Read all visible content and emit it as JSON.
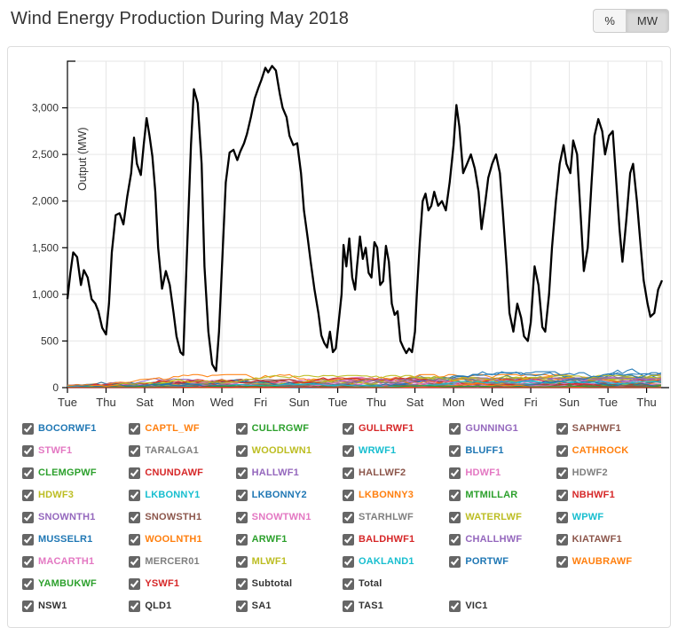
{
  "header": {
    "title": "Wind Energy Production During May 2018",
    "unit_buttons": [
      {
        "label": "%",
        "active": false
      },
      {
        "label": "MW",
        "active": true
      }
    ]
  },
  "chart_data": {
    "type": "line",
    "title": "Wind Energy Production During May 2018",
    "xlabel": "",
    "ylabel": "Output (MW)",
    "ylim": [
      0,
      3500
    ],
    "grid": true,
    "grid_color": "#e6e6e6",
    "y_ticks": [
      0,
      500,
      1000,
      1500,
      2000,
      2500,
      3000
    ],
    "y_tick_labels": [
      "0",
      "500",
      "1,000",
      "1,500",
      "2,000",
      "2,500",
      "3,000"
    ],
    "x_tick_labels": [
      "Tue",
      "Thu",
      "Sat",
      "Mon",
      "Wed",
      "Fri",
      "Sun",
      "Tue",
      "Thu",
      "Sat",
      "Mon",
      "Wed",
      "Fri",
      "Sun",
      "Tue",
      "Thu"
    ],
    "x_tick_days": [
      0,
      2,
      4,
      6,
      8,
      10,
      12,
      14,
      16,
      18,
      20,
      22,
      24,
      26,
      28,
      30
    ],
    "x_range_days": [
      0,
      30.8
    ],
    "total_series": {
      "name": "Total",
      "color": "#000000",
      "points_day_mw": [
        [
          0.0,
          950
        ],
        [
          0.15,
          1230
        ],
        [
          0.3,
          1450
        ],
        [
          0.5,
          1400
        ],
        [
          0.7,
          1100
        ],
        [
          0.85,
          1260
        ],
        [
          1.05,
          1180
        ],
        [
          1.25,
          950
        ],
        [
          1.45,
          900
        ],
        [
          1.6,
          820
        ],
        [
          1.8,
          640
        ],
        [
          2.0,
          570
        ],
        [
          2.15,
          900
        ],
        [
          2.3,
          1450
        ],
        [
          2.5,
          1850
        ],
        [
          2.7,
          1870
        ],
        [
          2.9,
          1750
        ],
        [
          3.1,
          2050
        ],
        [
          3.3,
          2300
        ],
        [
          3.45,
          2680
        ],
        [
          3.6,
          2400
        ],
        [
          3.8,
          2280
        ],
        [
          3.95,
          2600
        ],
        [
          4.1,
          2890
        ],
        [
          4.25,
          2700
        ],
        [
          4.4,
          2480
        ],
        [
          4.55,
          2100
        ],
        [
          4.7,
          1500
        ],
        [
          4.9,
          1060
        ],
        [
          5.1,
          1250
        ],
        [
          5.3,
          1100
        ],
        [
          5.5,
          800
        ],
        [
          5.65,
          550
        ],
        [
          5.85,
          380
        ],
        [
          6.0,
          350
        ],
        [
          6.2,
          1500
        ],
        [
          6.4,
          2600
        ],
        [
          6.55,
          3200
        ],
        [
          6.75,
          3050
        ],
        [
          6.95,
          2400
        ],
        [
          7.1,
          1300
        ],
        [
          7.3,
          600
        ],
        [
          7.5,
          250
        ],
        [
          7.7,
          180
        ],
        [
          7.85,
          600
        ],
        [
          8.05,
          1500
        ],
        [
          8.2,
          2200
        ],
        [
          8.4,
          2520
        ],
        [
          8.6,
          2550
        ],
        [
          8.8,
          2440
        ],
        [
          8.95,
          2530
        ],
        [
          9.15,
          2620
        ],
        [
          9.3,
          2720
        ],
        [
          9.5,
          2900
        ],
        [
          9.7,
          3100
        ],
        [
          9.9,
          3220
        ],
        [
          10.05,
          3300
        ],
        [
          10.25,
          3430
        ],
        [
          10.4,
          3380
        ],
        [
          10.6,
          3450
        ],
        [
          10.8,
          3400
        ],
        [
          11.0,
          3150
        ],
        [
          11.15,
          3000
        ],
        [
          11.35,
          2900
        ],
        [
          11.5,
          2700
        ],
        [
          11.7,
          2600
        ],
        [
          11.9,
          2620
        ],
        [
          12.1,
          2300
        ],
        [
          12.25,
          1900
        ],
        [
          12.45,
          1600
        ],
        [
          12.6,
          1350
        ],
        [
          12.8,
          1050
        ],
        [
          13.0,
          800
        ],
        [
          13.15,
          560
        ],
        [
          13.3,
          480
        ],
        [
          13.45,
          430
        ],
        [
          13.6,
          600
        ],
        [
          13.75,
          380
        ],
        [
          13.9,
          420
        ],
        [
          14.05,
          700
        ],
        [
          14.2,
          1000
        ],
        [
          14.3,
          1530
        ],
        [
          14.45,
          1300
        ],
        [
          14.6,
          1600
        ],
        [
          14.75,
          1180
        ],
        [
          14.9,
          1050
        ],
        [
          15.0,
          1300
        ],
        [
          15.15,
          1620
        ],
        [
          15.3,
          1380
        ],
        [
          15.45,
          1500
        ],
        [
          15.6,
          1230
        ],
        [
          15.75,
          1180
        ],
        [
          15.9,
          1560
        ],
        [
          16.05,
          1500
        ],
        [
          16.2,
          1100
        ],
        [
          16.35,
          1140
        ],
        [
          16.5,
          1520
        ],
        [
          16.65,
          1350
        ],
        [
          16.8,
          900
        ],
        [
          16.95,
          780
        ],
        [
          17.1,
          820
        ],
        [
          17.25,
          500
        ],
        [
          17.4,
          430
        ],
        [
          17.55,
          370
        ],
        [
          17.7,
          420
        ],
        [
          17.85,
          380
        ],
        [
          18.0,
          600
        ],
        [
          18.1,
          1000
        ],
        [
          18.25,
          1550
        ],
        [
          18.4,
          2000
        ],
        [
          18.55,
          2080
        ],
        [
          18.7,
          1900
        ],
        [
          18.85,
          1950
        ],
        [
          19.0,
          2100
        ],
        [
          19.2,
          1950
        ],
        [
          19.4,
          2000
        ],
        [
          19.6,
          1900
        ],
        [
          19.8,
          2200
        ],
        [
          20.0,
          2600
        ],
        [
          20.15,
          3030
        ],
        [
          20.3,
          2800
        ],
        [
          20.5,
          2300
        ],
        [
          20.7,
          2400
        ],
        [
          20.9,
          2500
        ],
        [
          21.1,
          2350
        ],
        [
          21.3,
          2100
        ],
        [
          21.45,
          1700
        ],
        [
          21.65,
          2000
        ],
        [
          21.8,
          2250
        ],
        [
          22.0,
          2400
        ],
        [
          22.2,
          2500
        ],
        [
          22.4,
          2300
        ],
        [
          22.55,
          1900
        ],
        [
          22.75,
          1300
        ],
        [
          22.9,
          800
        ],
        [
          23.1,
          600
        ],
        [
          23.3,
          900
        ],
        [
          23.5,
          750
        ],
        [
          23.65,
          550
        ],
        [
          23.85,
          500
        ],
        [
          24.0,
          700
        ],
        [
          24.2,
          1300
        ],
        [
          24.4,
          1100
        ],
        [
          24.6,
          650
        ],
        [
          24.75,
          600
        ],
        [
          24.95,
          1000
        ],
        [
          25.1,
          1500
        ],
        [
          25.3,
          2000
        ],
        [
          25.5,
          2400
        ],
        [
          25.7,
          2600
        ],
        [
          25.85,
          2400
        ],
        [
          26.05,
          2300
        ],
        [
          26.2,
          2650
        ],
        [
          26.4,
          2500
        ],
        [
          26.6,
          1800
        ],
        [
          26.75,
          1250
        ],
        [
          26.95,
          1500
        ],
        [
          27.15,
          2200
        ],
        [
          27.3,
          2700
        ],
        [
          27.5,
          2880
        ],
        [
          27.7,
          2750
        ],
        [
          27.85,
          2500
        ],
        [
          28.05,
          2700
        ],
        [
          28.25,
          2750
        ],
        [
          28.4,
          2300
        ],
        [
          28.6,
          1700
        ],
        [
          28.75,
          1350
        ],
        [
          28.95,
          1800
        ],
        [
          29.15,
          2300
        ],
        [
          29.3,
          2400
        ],
        [
          29.5,
          2000
        ],
        [
          29.7,
          1500
        ],
        [
          29.85,
          1150
        ],
        [
          30.05,
          900
        ],
        [
          30.2,
          760
        ],
        [
          30.4,
          800
        ],
        [
          30.6,
          1050
        ],
        [
          30.8,
          1150
        ]
      ]
    },
    "farms": [
      {
        "name": "BOCORWF1",
        "approx_peak_mw": 200
      },
      {
        "name": "CAPTL_WF",
        "approx_peak_mw": 140
      },
      {
        "name": "CULLRGWF",
        "approx_peak_mw": 30
      },
      {
        "name": "GULLRWF1",
        "approx_peak_mw": 165
      },
      {
        "name": "GUNNING1",
        "approx_peak_mw": 45
      },
      {
        "name": "SAPHWF1",
        "approx_peak_mw": 90
      },
      {
        "name": "STWF1",
        "approx_peak_mw": 110
      },
      {
        "name": "TARALGA1",
        "approx_peak_mw": 100
      },
      {
        "name": "WOODLWN1",
        "approx_peak_mw": 48
      },
      {
        "name": "WRWF1",
        "approx_peak_mw": 80
      },
      {
        "name": "BLUFF1",
        "approx_peak_mw": 50
      },
      {
        "name": "CATHROCK",
        "approx_peak_mw": 60
      },
      {
        "name": "CLEMGPWF",
        "approx_peak_mw": 55
      },
      {
        "name": "CNUNDAWF",
        "approx_peak_mw": 46
      },
      {
        "name": "HALLWF1",
        "approx_peak_mw": 95
      },
      {
        "name": "HALLWF2",
        "approx_peak_mw": 70
      },
      {
        "name": "HDWF1",
        "approx_peak_mw": 100
      },
      {
        "name": "HDWF2",
        "approx_peak_mw": 100
      },
      {
        "name": "HDWF3",
        "approx_peak_mw": 110
      },
      {
        "name": "LKBONNY1",
        "approx_peak_mw": 80
      },
      {
        "name": "LKBONNY2",
        "approx_peak_mw": 160
      },
      {
        "name": "LKBONNY3",
        "approx_peak_mw": 40
      },
      {
        "name": "MTMILLAR",
        "approx_peak_mw": 70
      },
      {
        "name": "NBHWF1",
        "approx_peak_mw": 130
      },
      {
        "name": "SNOWNTH1",
        "approx_peak_mw": 100
      },
      {
        "name": "SNOWSTH1",
        "approx_peak_mw": 90
      },
      {
        "name": "SNOWTWN1",
        "approx_peak_mw": 120
      },
      {
        "name": "STARHLWF",
        "approx_peak_mw": 35
      },
      {
        "name": "WATERLWF",
        "approx_peak_mw": 110
      },
      {
        "name": "WPWF",
        "approx_peak_mw": 90
      },
      {
        "name": "MUSSELR1",
        "approx_peak_mw": 170
      },
      {
        "name": "WOOLNTH1",
        "approx_peak_mw": 140
      },
      {
        "name": "ARWF1",
        "approx_peak_mw": 120
      },
      {
        "name": "BALDHWF1",
        "approx_peak_mw": 105
      },
      {
        "name": "CHALLHWF",
        "approx_peak_mw": 105
      },
      {
        "name": "KIATAWF1",
        "approx_peak_mw": 30
      },
      {
        "name": "MACARTH1",
        "approx_peak_mw": 430
      },
      {
        "name": "MERCER01",
        "approx_peak_mw": 130
      },
      {
        "name": "MLWF1",
        "approx_peak_mw": 130
      },
      {
        "name": "OAKLAND1",
        "approx_peak_mw": 65
      },
      {
        "name": "PORTWF",
        "approx_peak_mw": 160
      },
      {
        "name": "WAUBRAWF",
        "approx_peak_mw": 125
      },
      {
        "name": "YAMBUKWF",
        "approx_peak_mw": 30
      },
      {
        "name": "YSWF1",
        "approx_peak_mw": 30
      }
    ]
  },
  "legend": {
    "columns": 6,
    "items": [
      {
        "label": "BOCORWF1",
        "color": "#1f77b4",
        "checked": true
      },
      {
        "label": "CAPTL_WF",
        "color": "#ff7f0e",
        "checked": true
      },
      {
        "label": "CULLRGWF",
        "color": "#2ca02c",
        "checked": true
      },
      {
        "label": "GULLRWF1",
        "color": "#d62728",
        "checked": true
      },
      {
        "label": "GUNNING1",
        "color": "#9467bd",
        "checked": true
      },
      {
        "label": "SAPHWF1",
        "color": "#8c564b",
        "checked": true
      },
      {
        "label": "STWF1",
        "color": "#e377c2",
        "checked": true
      },
      {
        "label": "TARALGA1",
        "color": "#7f7f7f",
        "checked": true
      },
      {
        "label": "WOODLWN1",
        "color": "#bcbd22",
        "checked": true
      },
      {
        "label": "WRWF1",
        "color": "#17becf",
        "checked": true
      },
      {
        "label": "BLUFF1",
        "color": "#1f77b4",
        "checked": true
      },
      {
        "label": "CATHROCK",
        "color": "#ff7f0e",
        "checked": true
      },
      {
        "label": "CLEMGPWF",
        "color": "#2ca02c",
        "checked": true
      },
      {
        "label": "CNUNDAWF",
        "color": "#d62728",
        "checked": true
      },
      {
        "label": "HALLWF1",
        "color": "#9467bd",
        "checked": true
      },
      {
        "label": "HALLWF2",
        "color": "#8c564b",
        "checked": true
      },
      {
        "label": "HDWF1",
        "color": "#e377c2",
        "checked": true
      },
      {
        "label": "HDWF2",
        "color": "#7f7f7f",
        "checked": true
      },
      {
        "label": "HDWF3",
        "color": "#bcbd22",
        "checked": true
      },
      {
        "label": "LKBONNY1",
        "color": "#17becf",
        "checked": true
      },
      {
        "label": "LKBONNY2",
        "color": "#1f77b4",
        "checked": true
      },
      {
        "label": "LKBONNY3",
        "color": "#ff7f0e",
        "checked": true
      },
      {
        "label": "MTMILLAR",
        "color": "#2ca02c",
        "checked": true
      },
      {
        "label": "NBHWF1",
        "color": "#d62728",
        "checked": true
      },
      {
        "label": "SNOWNTH1",
        "color": "#9467bd",
        "checked": true
      },
      {
        "label": "SNOWSTH1",
        "color": "#8c564b",
        "checked": true
      },
      {
        "label": "SNOWTWN1",
        "color": "#e377c2",
        "checked": true
      },
      {
        "label": "STARHLWF",
        "color": "#7f7f7f",
        "checked": true
      },
      {
        "label": "WATERLWF",
        "color": "#bcbd22",
        "checked": true
      },
      {
        "label": "WPWF",
        "color": "#17becf",
        "checked": true
      },
      {
        "label": "MUSSELR1",
        "color": "#1f77b4",
        "checked": true
      },
      {
        "label": "WOOLNTH1",
        "color": "#ff7f0e",
        "checked": true
      },
      {
        "label": "ARWF1",
        "color": "#2ca02c",
        "checked": true
      },
      {
        "label": "BALDHWF1",
        "color": "#d62728",
        "checked": true
      },
      {
        "label": "CHALLHWF",
        "color": "#9467bd",
        "checked": true
      },
      {
        "label": "KIATAWF1",
        "color": "#8c564b",
        "checked": true
      },
      {
        "label": "MACARTH1",
        "color": "#e377c2",
        "checked": true
      },
      {
        "label": "MERCER01",
        "color": "#7f7f7f",
        "checked": true
      },
      {
        "label": "MLWF1",
        "color": "#bcbd22",
        "checked": true
      },
      {
        "label": "OAKLAND1",
        "color": "#17becf",
        "checked": true
      },
      {
        "label": "PORTWF",
        "color": "#1f77b4",
        "checked": true
      },
      {
        "label": "WAUBRAWF",
        "color": "#ff7f0e",
        "checked": true
      },
      {
        "label": "YAMBUKWF",
        "color": "#2ca02c",
        "checked": true
      },
      {
        "label": "YSWF1",
        "color": "#d62728",
        "checked": true
      },
      {
        "label": "Subtotal",
        "color": "#333333",
        "checked": true
      },
      {
        "label": "Total",
        "color": "#333333",
        "checked": true
      },
      {
        "label": "NSW1",
        "color": "#333333",
        "checked": true,
        "break_before": true
      },
      {
        "label": "QLD1",
        "color": "#333333",
        "checked": true
      },
      {
        "label": "SA1",
        "color": "#333333",
        "checked": true
      },
      {
        "label": "TAS1",
        "color": "#333333",
        "checked": true
      },
      {
        "label": "VIC1",
        "color": "#333333",
        "checked": true
      }
    ]
  }
}
